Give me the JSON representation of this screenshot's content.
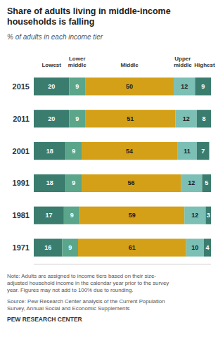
{
  "chart_data": {
    "type": "bar",
    "orientation": "horizontal",
    "stacked": true,
    "data_labels": true,
    "tick_labels": "y",
    "grid": false,
    "title": "Share of adults living in middle-income\nhouseholds is falling",
    "subtitle": "% of adults in each income tier",
    "categories": [
      "2015",
      "2011",
      "2001",
      "1991",
      "1981",
      "1971"
    ],
    "series": [
      {
        "name": "Lowest",
        "color": "#3a7d6e",
        "values": [
          20,
          20,
          18,
          18,
          17,
          16
        ]
      },
      {
        "name": "Lower\nmiddle",
        "color": "#5ba58a",
        "values": [
          9,
          9,
          9,
          9,
          9,
          9
        ]
      },
      {
        "name": "Middle",
        "color": "#d4a017",
        "values": [
          50,
          51,
          54,
          56,
          59,
          61
        ]
      },
      {
        "name": "Upper\nmiddle",
        "color": "#7bbfb5",
        "values": [
          12,
          12,
          11,
          12,
          12,
          10
        ]
      },
      {
        "name": "Highest",
        "color": "#3a7d6e",
        "values": [
          9,
          8,
          7,
          5,
          3,
          4
        ]
      }
    ],
    "xlim": [
      0,
      100
    ],
    "annotations": [
      "Note: Adults are assigned to income tiers based on their size-\nadjusted household income in the calendar year prior to the survey\nyear. Figures may not add to 100% due to rounding.",
      "Source: Pew Research Center analysis of the Current Population\nSurvey, Annual Social and Economic Supplements",
      "PEW RESEARCH CENTER"
    ]
  }
}
